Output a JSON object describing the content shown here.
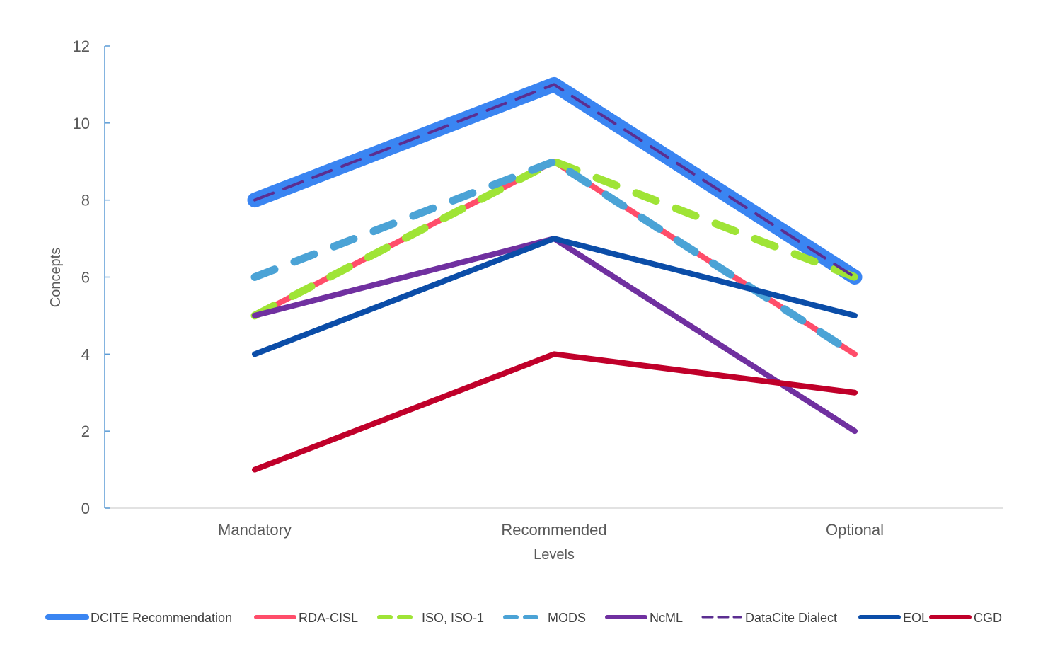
{
  "chart_data": {
    "type": "line",
    "title": "",
    "xlabel": "Levels",
    "ylabel": "Concepts",
    "categories": [
      "Mandatory",
      "Recommended",
      "Optional"
    ],
    "ylim": [
      0,
      12
    ],
    "yticks": [
      0,
      2,
      4,
      6,
      8,
      10,
      12
    ],
    "grid": false,
    "legend_position": "bottom",
    "series": [
      {
        "name": "DCITE Recommendation",
        "values": [
          8,
          11,
          6
        ],
        "color": "#3A85F2",
        "style": "solid-thick"
      },
      {
        "name": "RDA-CISL",
        "values": [
          5,
          9,
          4
        ],
        "color": "#FF4D6A",
        "style": "solid"
      },
      {
        "name": "ISO, ISO-1",
        "values": [
          5,
          9,
          6
        ],
        "color": "#9FE436",
        "style": "dashed"
      },
      {
        "name": "MODS",
        "values": [
          6,
          9,
          4
        ],
        "color": "#4BA3D6",
        "style": "dashed"
      },
      {
        "name": "NcML",
        "values": [
          5,
          7,
          2
        ],
        "color": "#7030A0",
        "style": "solid"
      },
      {
        "name": "DataCite Dialect",
        "values": [
          8,
          11,
          6
        ],
        "color": "#5B2E91",
        "style": "dashed-thin"
      },
      {
        "name": "EOL",
        "values": [
          4,
          7,
          5
        ],
        "color": "#0B4DA8",
        "style": "solid"
      },
      {
        "name": "CGD",
        "values": [
          1,
          4,
          3
        ],
        "color": "#C0002A",
        "style": "solid"
      }
    ]
  }
}
